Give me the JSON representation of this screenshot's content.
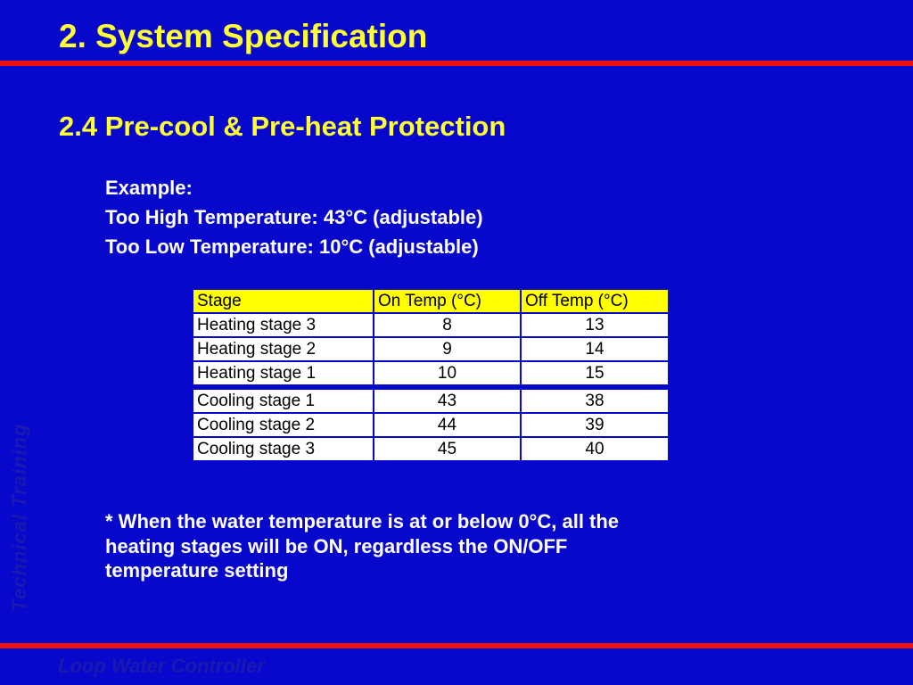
{
  "header": {
    "title": "2. System Specification",
    "subtitle": "2.4 Pre-cool & Pre-heat Protection"
  },
  "intro": [
    "Example:",
    "Too High Temperature: 43°C (adjustable)",
    "Too Low Temperature: 10°C (adjustable)"
  ],
  "table": {
    "columns": [
      "Stage",
      "On Temp (°C)",
      "Off Temp (°C)"
    ],
    "rows": [
      [
        "Heating stage 3",
        8,
        13
      ],
      [
        "Heating stage 2",
        9,
        14
      ],
      [
        "Heating stage 1",
        10,
        15
      ],
      [
        "Cooling stage 1",
        43,
        38
      ],
      [
        "Cooling stage 2",
        44,
        39
      ],
      [
        "Cooling stage 3",
        45,
        40
      ]
    ]
  },
  "note": [
    "* When the water temperature is at or below 0°C, all the",
    "heating stages will be ON, regardless the ON/OFF",
    "temperature setting"
  ],
  "watermark": "Technical Training",
  "footer": "Loop Water Controller"
}
